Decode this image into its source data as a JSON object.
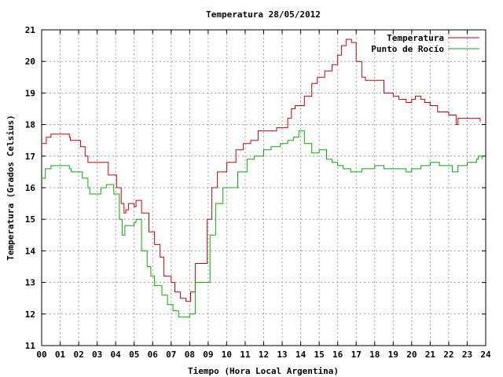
{
  "chart_data": {
    "type": "line",
    "title": "Temperatura 28/05/2012",
    "xlabel": "Tiempo (Hora Local Argentina)",
    "ylabel": "Temperatura (Grados Celsius)",
    "xlim": [
      0,
      24
    ],
    "ylim": [
      11,
      21
    ],
    "grid": true,
    "legend_position": "top-right",
    "x_ticks": [
      "00",
      "01",
      "02",
      "03",
      "04",
      "05",
      "06",
      "07",
      "08",
      "09",
      "10",
      "11",
      "12",
      "13",
      "14",
      "15",
      "16",
      "17",
      "18",
      "19",
      "20",
      "21",
      "22",
      "23",
      "24"
    ],
    "y_ticks": [
      "11",
      "12",
      "13",
      "14",
      "15",
      "16",
      "17",
      "18",
      "19",
      "20",
      "21"
    ],
    "series": [
      {
        "name": "Temperatura",
        "color": "#d00000",
        "x": [
          0.0,
          0.25,
          0.5,
          1.5,
          1.55,
          2.1,
          2.35,
          2.5,
          3.3,
          3.6,
          4.05,
          4.3,
          4.45,
          4.55,
          4.7,
          5.0,
          5.1,
          5.4,
          5.8,
          6.1,
          6.4,
          6.6,
          7.0,
          7.2,
          7.5,
          7.8,
          8.05,
          8.3,
          8.8,
          8.95,
          9.2,
          9.5,
          10.0,
          10.5,
          10.9,
          11.3,
          11.7,
          12.0,
          12.5,
          12.7,
          13.1,
          13.3,
          13.5,
          13.7,
          14.2,
          14.6,
          14.9,
          15.3,
          15.7,
          16.0,
          16.2,
          16.45,
          16.75,
          17.0,
          17.3,
          17.5,
          18.0,
          18.5,
          19.0,
          19.3,
          19.7,
          20.0,
          20.2,
          20.5,
          20.7,
          21.0,
          21.4,
          21.7,
          22.0,
          22.4,
          22.5,
          23.0,
          23.5,
          23.7
        ],
        "y": [
          17.4,
          17.6,
          17.7,
          17.6,
          17.5,
          17.3,
          17.0,
          16.8,
          16.8,
          16.4,
          16.0,
          15.5,
          15.2,
          15.3,
          15.5,
          15.4,
          15.6,
          15.2,
          14.6,
          14.2,
          13.8,
          13.2,
          13.0,
          12.7,
          12.5,
          12.4,
          12.7,
          13.6,
          13.6,
          15.0,
          16.0,
          16.5,
          16.8,
          17.2,
          17.4,
          17.5,
          17.8,
          17.8,
          17.8,
          17.9,
          17.9,
          18.2,
          18.5,
          18.6,
          18.9,
          19.3,
          19.5,
          19.7,
          19.9,
          20.2,
          20.5,
          20.7,
          20.6,
          20.0,
          19.5,
          19.4,
          19.4,
          19.0,
          18.9,
          18.8,
          18.7,
          18.8,
          18.9,
          18.8,
          18.7,
          18.6,
          18.4,
          18.4,
          18.3,
          18.0,
          18.2,
          18.2,
          18.2,
          18.1
        ]
      },
      {
        "name": "Punto de Rocío",
        "color": "#00b000",
        "x": [
          0.0,
          0.2,
          0.5,
          1.5,
          1.6,
          2.2,
          2.5,
          2.6,
          3.2,
          3.5,
          3.9,
          4.2,
          4.35,
          4.5,
          4.8,
          5.0,
          5.1,
          5.4,
          5.7,
          5.9,
          6.1,
          6.5,
          6.8,
          7.1,
          7.4,
          7.8,
          8.0,
          8.3,
          8.8,
          9.1,
          9.4,
          9.8,
          10.0,
          10.6,
          11.1,
          11.5,
          12.0,
          12.4,
          12.9,
          13.3,
          13.6,
          13.9,
          14.2,
          14.6,
          15.0,
          15.4,
          15.7,
          16.0,
          16.3,
          16.7,
          17.0,
          17.3,
          17.7,
          18.0,
          18.5,
          19.0,
          19.3,
          19.7,
          20.0,
          20.5,
          21.0,
          21.5,
          22.0,
          22.2,
          22.5,
          23.0,
          23.3,
          23.5,
          23.6,
          23.8
        ],
        "y": [
          16.3,
          16.6,
          16.7,
          16.6,
          16.5,
          16.3,
          16.0,
          15.8,
          16.0,
          16.1,
          15.8,
          15.0,
          14.5,
          14.8,
          14.8,
          14.9,
          15.0,
          14.0,
          13.5,
          13.2,
          12.9,
          12.6,
          12.3,
          12.1,
          11.9,
          11.9,
          12.0,
          13.0,
          13.0,
          14.5,
          15.5,
          16.0,
          16.0,
          16.5,
          16.9,
          17.0,
          17.2,
          17.3,
          17.4,
          17.5,
          17.6,
          17.8,
          17.4,
          17.1,
          17.2,
          16.9,
          16.8,
          16.7,
          16.6,
          16.5,
          16.5,
          16.6,
          16.6,
          16.7,
          16.6,
          16.6,
          16.6,
          16.5,
          16.6,
          16.7,
          16.8,
          16.7,
          16.7,
          16.5,
          16.7,
          16.8,
          16.8,
          16.9,
          17.0,
          16.9
        ]
      }
    ]
  }
}
